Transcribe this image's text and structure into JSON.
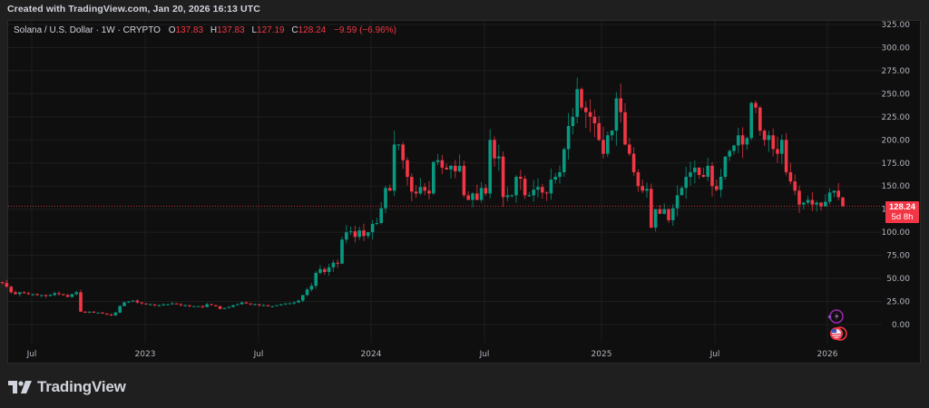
{
  "header": {
    "created_text": "Created with TradingView.com, Jan 20, 2026 16:13 UTC"
  },
  "legend": {
    "symbol": "Solana / U.S. Dollar · 1W · CRYPTO",
    "o_label": "O",
    "o_value": "137.83",
    "h_label": "H",
    "h_value": "137.83",
    "l_label": "L",
    "l_value": "127.19",
    "c_label": "C",
    "c_value": "128.24",
    "change": "−9.59 (−6.96%)"
  },
  "price_tag": {
    "price": "128.24",
    "countdown": "5d 8h",
    "color": "#f23645"
  },
  "brand": {
    "name": "TradingView"
  },
  "colors": {
    "up": "#089981",
    "down": "#f23645",
    "background": "#0f0f0f",
    "frame": "#1f1f1f",
    "grid": "#1e1e1e"
  },
  "chart_data": {
    "type": "candlestick",
    "title": "Solana / U.S. Dollar · 1W · CRYPTO",
    "xlabel": "",
    "ylabel": "",
    "ylim": [
      0,
      325
    ],
    "y_ticks": [
      0,
      25,
      50,
      75,
      100,
      125,
      150,
      175,
      200,
      225,
      250,
      275,
      300,
      325
    ],
    "y_tick_labels": [
      "0.00",
      "25.00",
      "50.00",
      "75.00",
      "100.00",
      "125.00",
      "150.00",
      "175.00",
      "200.00",
      "225.00",
      "250.00",
      "275.00",
      "300.00",
      "325.00"
    ],
    "x_tick_labels": [
      "Jul",
      "2023",
      "Jul",
      "2024",
      "Jul",
      "2025",
      "Jul",
      "2026"
    ],
    "grid": true,
    "last_price": 128.24,
    "last_ohlc": {
      "open": 137.83,
      "high": 137.83,
      "low": 127.19,
      "close": 128.24
    },
    "weekly_closes": [
      40,
      35,
      32,
      35,
      38,
      36,
      37,
      40,
      44,
      42,
      43,
      46,
      45,
      41,
      35,
      33,
      35,
      34,
      33,
      33,
      32,
      32,
      31,
      32,
      34,
      33,
      32,
      30,
      33,
      35,
      14,
      13,
      14,
      13,
      13,
      12,
      11,
      10,
      13,
      20,
      24,
      25,
      26,
      24,
      23,
      22,
      22,
      21,
      21,
      22,
      22,
      23,
      22,
      21,
      21,
      20,
      20,
      20,
      19,
      22,
      21,
      20,
      17,
      18,
      19,
      21,
      22,
      24,
      23,
      22,
      22,
      21,
      21,
      20,
      20,
      21,
      22,
      23,
      23,
      24,
      26,
      32,
      38,
      42,
      56,
      60,
      57,
      62,
      67,
      66,
      92,
      100,
      101,
      95,
      102,
      96,
      100,
      109,
      110,
      126,
      148,
      145,
      195,
      195,
      178,
      160,
      144,
      142,
      149,
      145,
      142,
      176,
      178,
      170,
      168,
      172,
      166,
      172,
      140,
      135,
      142,
      135,
      148,
      142,
      200,
      180,
      182,
      138,
      140,
      140,
      160,
      158,
      140,
      140,
      146,
      149,
      143,
      142,
      157,
      160,
      165,
      190,
      215,
      225,
      255,
      235,
      230,
      225,
      218,
      200,
      185,
      205,
      210,
      245,
      230,
      195,
      185,
      165,
      150,
      145,
      147,
      105,
      125,
      120,
      125,
      113,
      126,
      140,
      148,
      160,
      165,
      170,
      162,
      160,
      172,
      150,
      146,
      160,
      182,
      188,
      194,
      205,
      195,
      202,
      240,
      235,
      210,
      200,
      205,
      190,
      185,
      200,
      165,
      155,
      145,
      130,
      132,
      135,
      130,
      132,
      128,
      133,
      143,
      145,
      138,
      128.24
    ]
  }
}
